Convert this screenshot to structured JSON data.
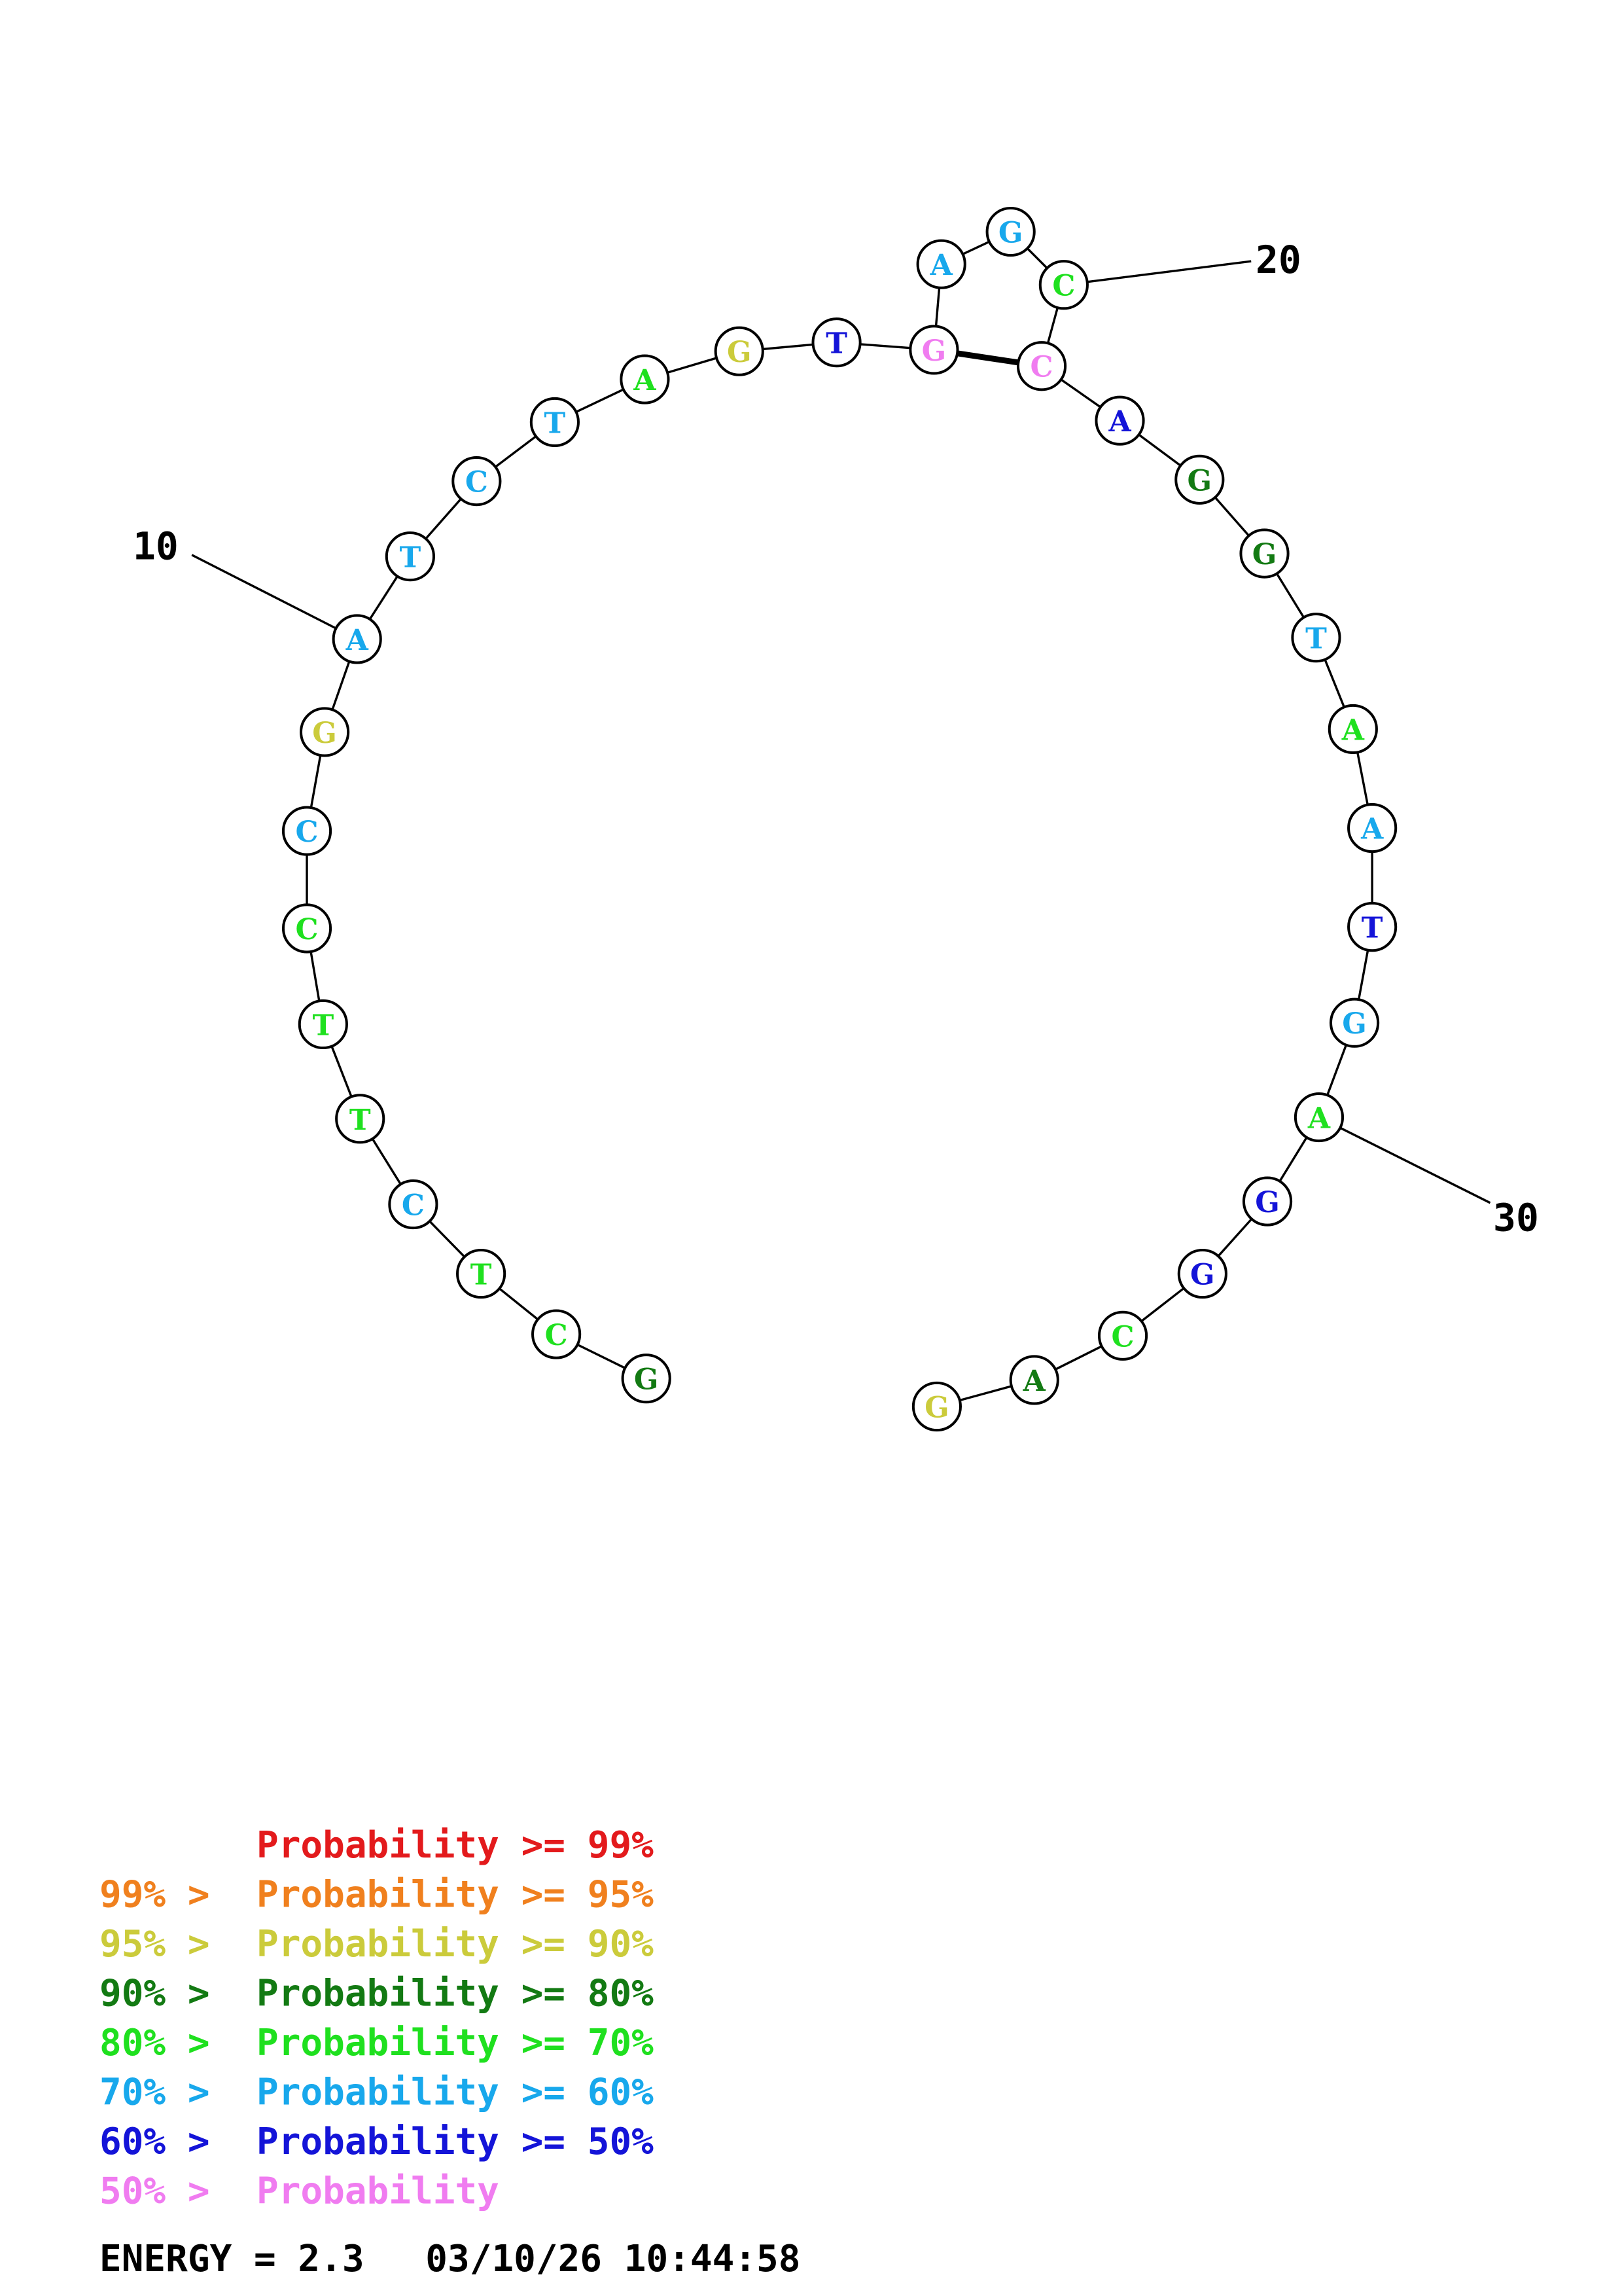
{
  "colors": {
    "c99": "#e31a1c",
    "c95": "#f0801e",
    "c90": "#cbcb3b",
    "c80": "#137a13",
    "c70": "#1fe01f",
    "c60": "#18a8ec",
    "c50": "#1414d8",
    "c0": "#f07cf0"
  },
  "structure": {
    "nucleotides": [
      {
        "index": 1,
        "base": "G",
        "color": "c80"
      },
      {
        "index": 2,
        "base": "C",
        "color": "c70"
      },
      {
        "index": 3,
        "base": "T",
        "color": "c70"
      },
      {
        "index": 4,
        "base": "C",
        "color": "c60"
      },
      {
        "index": 5,
        "base": "T",
        "color": "c70"
      },
      {
        "index": 6,
        "base": "T",
        "color": "c70"
      },
      {
        "index": 7,
        "base": "C",
        "color": "c70"
      },
      {
        "index": 8,
        "base": "C",
        "color": "c60"
      },
      {
        "index": 9,
        "base": "G",
        "color": "c90"
      },
      {
        "index": 10,
        "base": "A",
        "color": "c60"
      },
      {
        "index": 11,
        "base": "T",
        "color": "c60"
      },
      {
        "index": 12,
        "base": "C",
        "color": "c60"
      },
      {
        "index": 13,
        "base": "T",
        "color": "c60"
      },
      {
        "index": 14,
        "base": "A",
        "color": "c70"
      },
      {
        "index": 15,
        "base": "G",
        "color": "c90"
      },
      {
        "index": 16,
        "base": "T",
        "color": "c50"
      },
      {
        "index": 17,
        "base": "G",
        "color": "c0"
      },
      {
        "index": 18,
        "base": "A",
        "color": "c60"
      },
      {
        "index": 19,
        "base": "G",
        "color": "c60"
      },
      {
        "index": 20,
        "base": "C",
        "color": "c70"
      },
      {
        "index": 21,
        "base": "C",
        "color": "c0"
      },
      {
        "index": 22,
        "base": "A",
        "color": "c50"
      },
      {
        "index": 23,
        "base": "G",
        "color": "c80"
      },
      {
        "index": 24,
        "base": "G",
        "color": "c80"
      },
      {
        "index": 25,
        "base": "T",
        "color": "c60"
      },
      {
        "index": 26,
        "base": "A",
        "color": "c70"
      },
      {
        "index": 27,
        "base": "A",
        "color": "c60"
      },
      {
        "index": 28,
        "base": "T",
        "color": "c50"
      },
      {
        "index": 29,
        "base": "G",
        "color": "c60"
      },
      {
        "index": 30,
        "base": "A",
        "color": "c70"
      },
      {
        "index": 31,
        "base": "G",
        "color": "c50"
      },
      {
        "index": 32,
        "base": "G",
        "color": "c50"
      },
      {
        "index": 33,
        "base": "C",
        "color": "c70"
      },
      {
        "index": 34,
        "base": "A",
        "color": "c80"
      },
      {
        "index": 35,
        "base": "G",
        "color": "c90"
      }
    ],
    "pairs": [
      [
        17,
        21
      ]
    ],
    "tick_labels": [
      {
        "index": 10,
        "label": "10"
      },
      {
        "index": 20,
        "label": "20"
      },
      {
        "index": 30,
        "label": "30"
      }
    ]
  },
  "legend": [
    {
      "prefix": "",
      "text": "Probability >= 99%",
      "color": "c99"
    },
    {
      "prefix": "99% > ",
      "text": "Probability >= 95%",
      "color": "c95"
    },
    {
      "prefix": "95% > ",
      "text": "Probability >= 90%",
      "color": "c90"
    },
    {
      "prefix": "90% > ",
      "text": "Probability >= 80%",
      "color": "c80"
    },
    {
      "prefix": "80% > ",
      "text": "Probability >= 70%",
      "color": "c70"
    },
    {
      "prefix": "70% > ",
      "text": "Probability >= 60%",
      "color": "c60"
    },
    {
      "prefix": "60% > ",
      "text": "Probability >= 50%",
      "color": "c50"
    },
    {
      "prefix": "50% > ",
      "text": "Probability",
      "color": "c0"
    }
  ],
  "footer": {
    "energy": "ENERGY = 2.3",
    "timestamp": "03/10/26 10:44:58"
  }
}
